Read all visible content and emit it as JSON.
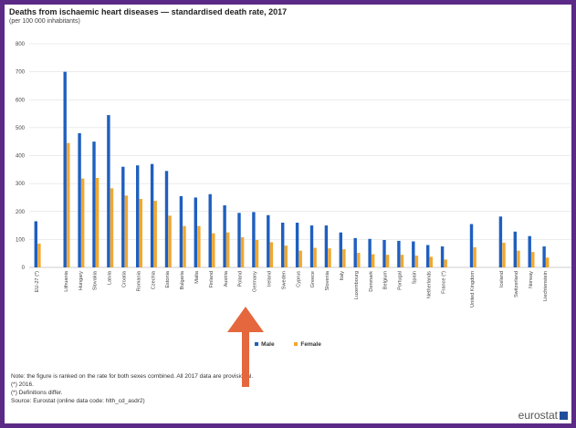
{
  "chart_data": {
    "type": "bar",
    "title": "Deaths from ischaemic heart diseases — standardised death rate, 2017",
    "subtitle": "(per 100 000 inhabitants)",
    "ylim": [
      0,
      800
    ],
    "yticks": [
      0,
      100,
      200,
      300,
      400,
      500,
      600,
      700,
      800
    ],
    "grid": true,
    "legend_position": "bottom",
    "groups": [
      [
        "EU-27 (*)"
      ],
      [
        "Lithuania",
        "Hungary",
        "Slovakia",
        "Latvia",
        "Croatia",
        "Romania",
        "Czechia",
        "Estonia",
        "Bulgaria",
        "Malta",
        "Finland",
        "Austria",
        "Poland",
        "Germany",
        "Ireland",
        "Sweden",
        "Cyprus",
        "Greece",
        "Slovenia",
        "Italy",
        "Luxembourg",
        "Denmark",
        "Belgium",
        "Portugal",
        "Spain",
        "Netherlands",
        "France (*)"
      ],
      [
        "United Kingdom"
      ],
      [
        "Iceland",
        "Switzerland",
        "Norway",
        "Liechtenstein"
      ],
      [
        "Turkey (*)",
        "Serbia"
      ]
    ],
    "categories": [
      "EU-27 (*)",
      "Lithuania",
      "Hungary",
      "Slovakia",
      "Latvia",
      "Croatia",
      "Romania",
      "Czechia",
      "Estonia",
      "Bulgaria",
      "Malta",
      "Finland",
      "Austria",
      "Poland",
      "Germany",
      "Ireland",
      "Sweden",
      "Cyprus",
      "Greece",
      "Slovenia",
      "Italy",
      "Luxembourg",
      "Denmark",
      "Belgium",
      "Portugal",
      "Spain",
      "Netherlands",
      "France (*)",
      "United Kingdom",
      "Iceland",
      "Switzerland",
      "Norway",
      "Liechtenstein",
      "Turkey (*)",
      "Serbia"
    ],
    "series": [
      {
        "name": "Male",
        "color": "#1f5fbf",
        "values": [
          165,
          700,
          480,
          450,
          545,
          360,
          365,
          370,
          345,
          255,
          250,
          262,
          222,
          195,
          198,
          187,
          160,
          160,
          150,
          150,
          125,
          105,
          102,
          98,
          95,
          93,
          80,
          75,
          155,
          182,
          128,
          112,
          75,
          252,
          178
        ]
      },
      {
        "name": "Female",
        "color": "#f0a830",
        "values": [
          85,
          445,
          318,
          320,
          283,
          257,
          245,
          238,
          185,
          148,
          148,
          122,
          125,
          108,
          98,
          90,
          78,
          60,
          70,
          68,
          65,
          52,
          47,
          45,
          45,
          42,
          38,
          28,
          72,
          88,
          60,
          55,
          35,
          158,
          118
        ]
      }
    ]
  },
  "notes": [
    "Note: the figure is ranked on the rate for both sexes combined. All 2017 data are provisional.",
    "(*) 2016.",
    "(*) Definitions differ.",
    "Source: Eurostat (online data code: hlth_cd_asdr2)"
  ],
  "logo_text": "eurostat",
  "colors": {
    "frame_background": "#5b2a86",
    "arrow": "#e5673e"
  }
}
